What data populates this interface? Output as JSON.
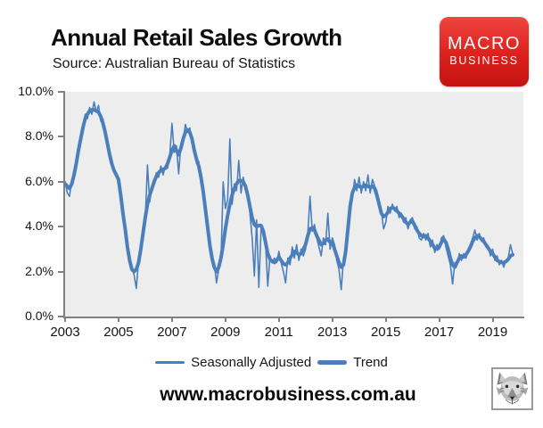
{
  "header": {
    "title": "Annual Retail Sales Growth",
    "source": "Source: Australian Bureau of Statistics"
  },
  "logo": {
    "line1": "MACRO",
    "line2": "BUSINESS",
    "bg_color": "#dd201c",
    "text_color": "#ffffff"
  },
  "legend": {
    "series1_label": "Seasonally Adjusted",
    "series2_label": "Trend"
  },
  "footer": {
    "url": "www.macrobusiness.com.au",
    "wolf_icon": "macrobusiness-wolf-logo"
  },
  "chart_data": {
    "type": "line",
    "title": "Annual Retail Sales Growth",
    "xlabel": "",
    "ylabel": "",
    "unit": "percent, annual growth",
    "grid": false,
    "legend_position": "bottom",
    "plot_bg": "#ededed",
    "line_color": "#4b7fbc",
    "axis_color": "#808080",
    "x_axis": [
      2003,
      2020.15
    ],
    "y_axis": [
      0,
      10
    ],
    "x_tick_years": [
      2003,
      2005,
      2007,
      2009,
      2011,
      2013,
      2015,
      2017,
      2019
    ],
    "x_tick_labels": [
      "2003",
      "2005",
      "2007",
      "2009",
      "2011",
      "2013",
      "2015",
      "2017",
      "2019"
    ],
    "y_tick_values": [
      10,
      8,
      6,
      4,
      2,
      0
    ],
    "y_tick_labels": [
      "10.0%",
      "8.0%",
      "6.0%",
      "4.0%",
      "2.0%",
      "0.0%"
    ],
    "x_start": 2003.0,
    "x_step": 0.0833333,
    "x_frequency": "monthly, Jan 2003 - Oct 2019",
    "series": [
      {
        "name": "Seasonally Adjusted",
        "stroke_width": 1.6,
        "values": [
          6.0,
          5.5,
          5.35,
          6.1,
          6.2,
          7.0,
          7.2,
          8.1,
          8.3,
          9.0,
          8.8,
          9.3,
          9.0,
          9.55,
          9.1,
          9.4,
          8.7,
          8.8,
          8.0,
          7.9,
          7.0,
          6.9,
          6.4,
          6.4,
          6.2,
          5.2,
          4.7,
          3.7,
          3.2,
          2.3,
          2.2,
          1.85,
          1.25,
          2.5,
          2.9,
          3.8,
          4.3,
          6.75,
          5.1,
          5.8,
          5.9,
          6.4,
          6.2,
          6.7,
          6.3,
          6.7,
          6.6,
          7.2,
          8.6,
          7.3,
          7.6,
          6.35,
          7.7,
          7.8,
          8.55,
          8.2,
          8.4,
          7.7,
          7.5,
          6.8,
          6.9,
          6.0,
          5.7,
          4.6,
          4.2,
          2.9,
          2.5,
          2.4,
          1.5,
          2.1,
          2.4,
          6.0,
          4.8,
          5.2,
          7.9,
          5.0,
          5.9,
          5.6,
          6.95,
          5.5,
          6.2,
          5.7,
          5.3,
          4.6,
          3.5,
          1.8,
          4.3,
          1.3,
          3.9,
          3.7,
          3.3,
          1.35,
          2.7,
          2.4,
          2.6,
          2.4,
          2.9,
          2.4,
          2.0,
          1.5,
          2.6,
          2.3,
          3.1,
          2.6,
          3.2,
          2.5,
          3.0,
          2.7,
          3.0,
          3.7,
          5.35,
          3.8,
          4.1,
          3.5,
          3.1,
          2.7,
          3.5,
          3.2,
          4.6,
          3.0,
          3.5,
          3.2,
          2.5,
          2.1,
          1.2,
          2.5,
          3.1,
          4.2,
          5.1,
          5.3,
          6.1,
          5.6,
          6.2,
          5.5,
          6.0,
          5.6,
          6.3,
          5.5,
          6.1,
          5.8,
          5.6,
          4.9,
          4.7,
          3.9,
          4.2,
          4.9,
          4.6,
          5.0,
          4.7,
          4.9,
          4.4,
          4.6,
          4.2,
          4.4,
          3.9,
          4.3,
          4.4,
          3.9,
          4.0,
          3.5,
          3.4,
          3.7,
          3.4,
          3.7,
          3.1,
          3.4,
          2.85,
          3.2,
          3.0,
          3.5,
          3.6,
          3.1,
          2.7,
          2.3,
          1.45,
          2.4,
          2.3,
          2.8,
          2.5,
          2.8,
          2.6,
          3.0,
          3.2,
          3.5,
          3.85,
          3.4,
          3.7,
          3.35,
          3.5,
          3.1,
          3.15,
          2.7,
          3.0,
          2.5,
          2.7,
          2.3,
          2.5,
          2.2,
          2.5,
          2.6,
          3.2,
          2.8
        ]
      },
      {
        "name": "Trend",
        "stroke_width": 4,
        "values": [
          5.9,
          5.8,
          5.7,
          5.9,
          6.3,
          6.8,
          7.4,
          7.9,
          8.4,
          8.8,
          9.0,
          9.15,
          9.2,
          9.2,
          9.15,
          9.1,
          8.9,
          8.6,
          8.2,
          7.7,
          7.2,
          6.8,
          6.5,
          6.3,
          6.1,
          5.4,
          4.6,
          3.9,
          3.1,
          2.5,
          2.1,
          2.0,
          2.1,
          2.4,
          3.0,
          3.7,
          4.4,
          5.0,
          5.4,
          5.7,
          6.0,
          6.25,
          6.4,
          6.5,
          6.55,
          6.6,
          6.8,
          7.1,
          7.4,
          7.6,
          7.4,
          7.2,
          7.5,
          7.9,
          8.2,
          8.3,
          8.2,
          7.9,
          7.4,
          7.0,
          6.7,
          6.2,
          5.6,
          4.8,
          4.0,
          3.2,
          2.6,
          2.2,
          2.0,
          2.2,
          2.6,
          3.2,
          3.9,
          4.5,
          5.0,
          5.4,
          5.7,
          5.9,
          6.05,
          6.05,
          6.0,
          5.8,
          5.4,
          4.9,
          4.4,
          4.1,
          4.0,
          4.05,
          4.05,
          3.8,
          3.3,
          2.8,
          2.55,
          2.45,
          2.4,
          2.5,
          2.65,
          2.5,
          2.35,
          2.3,
          2.4,
          2.6,
          2.75,
          2.9,
          2.85,
          2.75,
          2.8,
          3.0,
          3.2,
          3.6,
          3.9,
          3.95,
          3.85,
          3.6,
          3.4,
          3.2,
          3.25,
          3.4,
          3.45,
          3.3,
          3.3,
          3.0,
          2.7,
          2.4,
          2.2,
          2.3,
          2.9,
          3.9,
          4.9,
          5.5,
          5.75,
          5.85,
          5.8,
          5.75,
          5.8,
          5.85,
          5.8,
          5.75,
          5.8,
          5.7,
          5.4,
          5.0,
          4.6,
          4.45,
          4.5,
          4.65,
          4.8,
          4.85,
          4.8,
          4.7,
          4.6,
          4.5,
          4.35,
          4.2,
          4.1,
          4.2,
          4.25,
          4.05,
          3.85,
          3.7,
          3.6,
          3.55,
          3.6,
          3.5,
          3.35,
          3.2,
          3.05,
          3.0,
          3.1,
          3.3,
          3.45,
          3.3,
          3.0,
          2.6,
          2.3,
          2.2,
          2.4,
          2.6,
          2.7,
          2.65,
          2.75,
          2.9,
          3.1,
          3.35,
          3.5,
          3.6,
          3.55,
          3.45,
          3.35,
          3.2,
          3.05,
          2.9,
          2.8,
          2.65,
          2.5,
          2.45,
          2.4,
          2.4,
          2.45,
          2.55,
          2.7,
          2.75
        ]
      }
    ]
  }
}
